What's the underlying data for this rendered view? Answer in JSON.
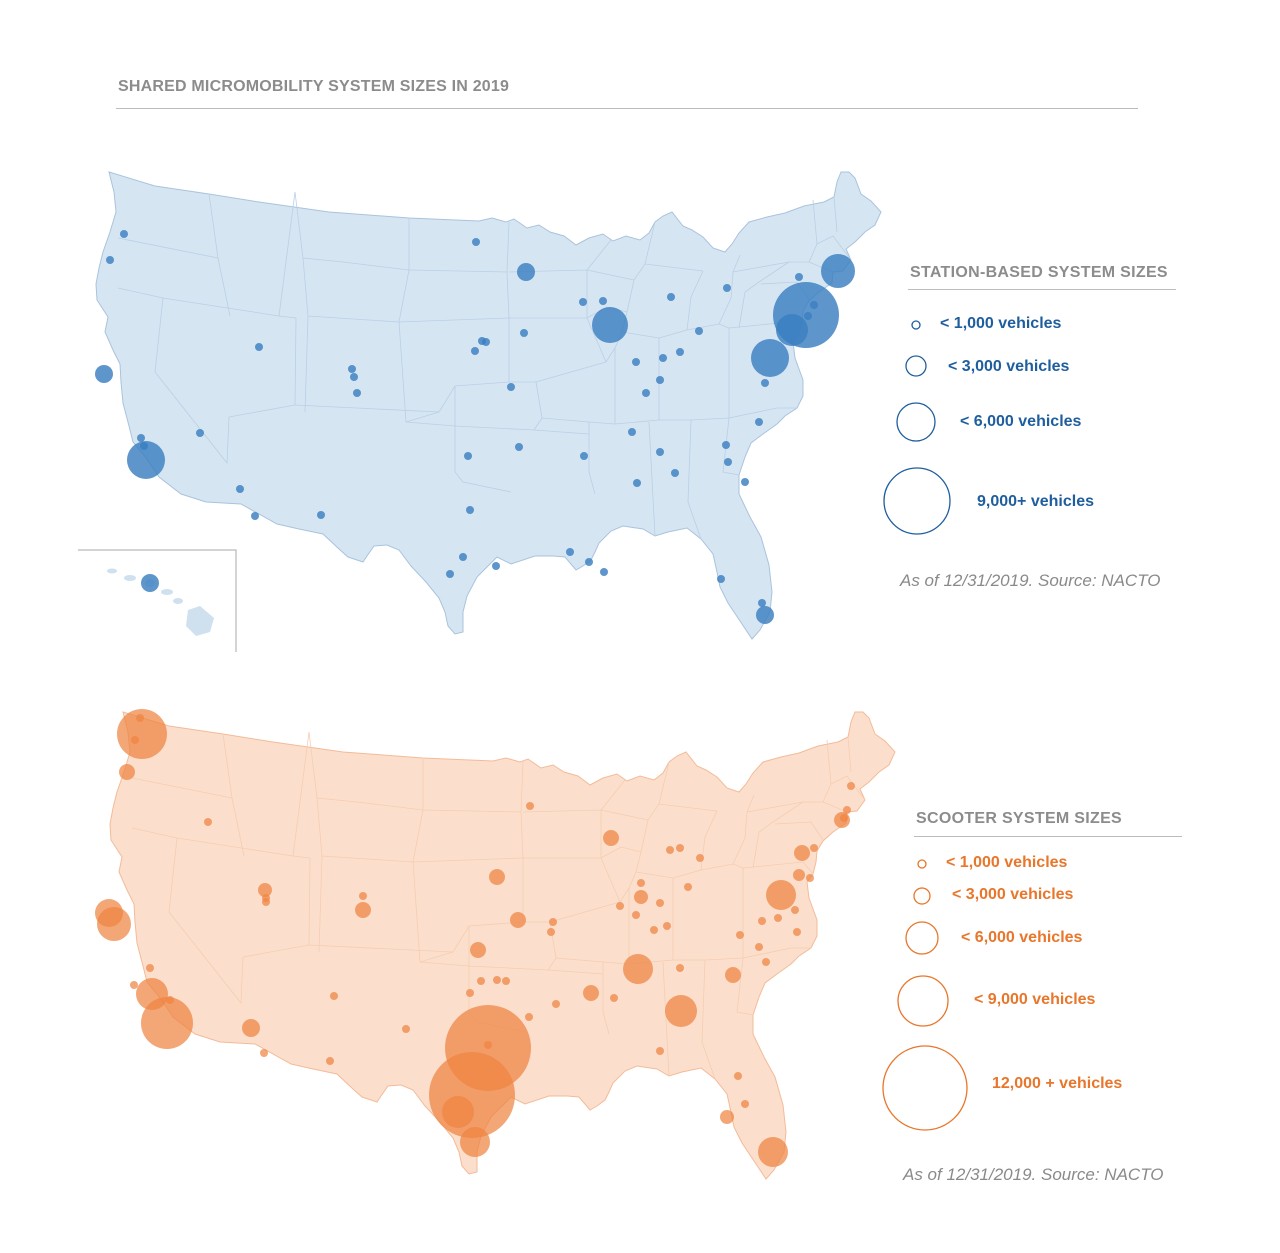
{
  "title": "SHARED MICROMOBILITY SYSTEM SIZES IN 2019",
  "colors": {
    "station_fill": "#3a7fc1",
    "station_land": "#d6e5f2",
    "scooter_fill": "#ee8441",
    "scooter_land": "#fbdfcc"
  },
  "station_map": {
    "legend_title": "STATION-BASED SYSTEM SIZES",
    "legend": [
      {
        "label": "< 1,000 vehicles",
        "max_vehicles": 1000
      },
      {
        "label": "< 3,000  vehicles",
        "max_vehicles": 3000
      },
      {
        "label": "< 6,000  vehicles",
        "max_vehicles": 6000
      },
      {
        "label": "9,000+  vehicles",
        "max_vehicles": 9000
      }
    ],
    "source": "As of 12/31/2019. Source: NACTO"
  },
  "scooter_map": {
    "legend_title": "SCOOTER SYSTEM SIZES",
    "legend": [
      {
        "label": "< 1,000 vehicles",
        "max_vehicles": 1000
      },
      {
        "label": "< 3,000  vehicles",
        "max_vehicles": 3000
      },
      {
        "label": "< 6,000  vehicles",
        "max_vehicles": 6000
      },
      {
        "label": "< 9,000  vehicles",
        "max_vehicles": 9000
      },
      {
        "label": "12,000 +  vehicles",
        "max_vehicles": 12000
      }
    ],
    "source": "As of 12/31/2019. Source: NACTO"
  }
}
